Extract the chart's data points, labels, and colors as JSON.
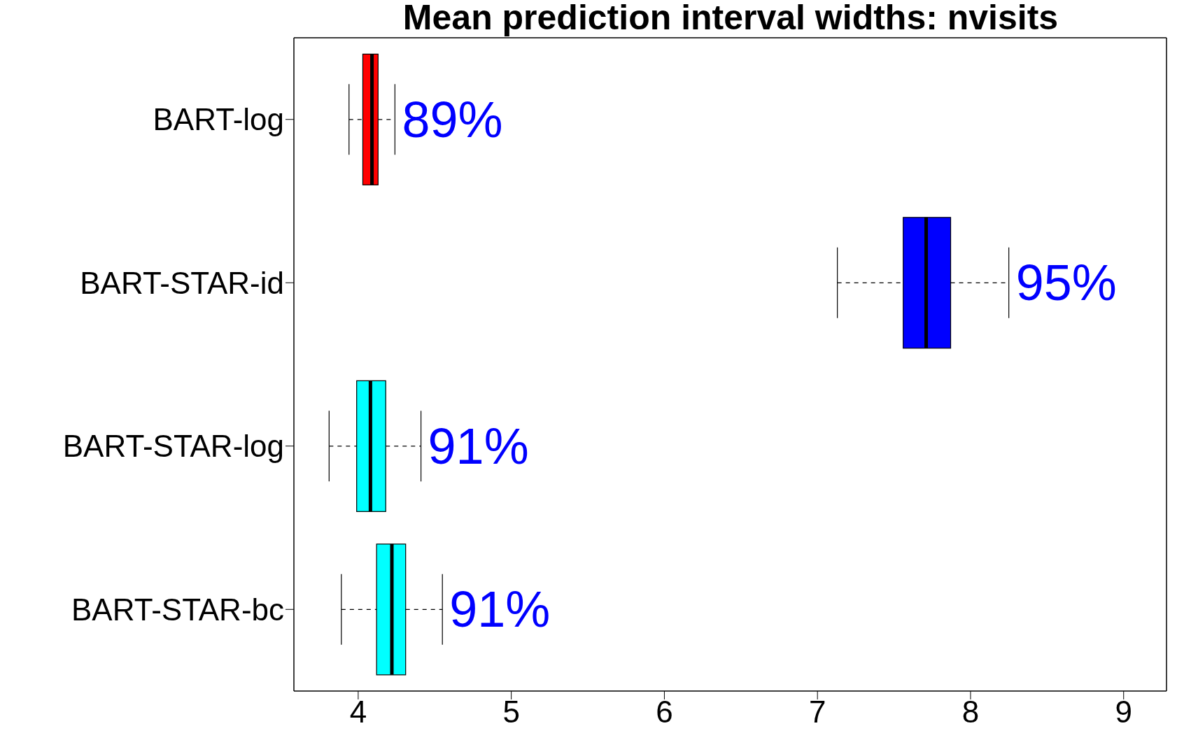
{
  "chart_data": {
    "type": "box",
    "title": "Mean prediction interval widths: nvisits",
    "orientation": "horizontal",
    "categories": [
      "BART-log",
      "BART-STAR-id",
      "BART-STAR-log",
      "BART-STAR-bc"
    ],
    "colors": [
      "#ff0000",
      "#0000ff",
      "#00ffff",
      "#00ffff"
    ],
    "boxes": [
      {
        "low": 3.94,
        "q1": 4.03,
        "median": 4.09,
        "q3": 4.13,
        "high": 4.24
      },
      {
        "low": 7.13,
        "q1": 7.56,
        "median": 7.71,
        "q3": 7.87,
        "high": 8.25
      },
      {
        "low": 3.81,
        "q1": 3.99,
        "median": 4.08,
        "q3": 4.18,
        "high": 4.41
      },
      {
        "low": 3.89,
        "q1": 4.12,
        "median": 4.22,
        "q3": 4.31,
        "high": 4.55
      }
    ],
    "xlim": [
      3.58,
      9.28
    ],
    "xticks": [
      4,
      5,
      6,
      7,
      8,
      9
    ],
    "annotations": [
      "89%",
      "95%",
      "91%",
      "91%"
    ]
  }
}
